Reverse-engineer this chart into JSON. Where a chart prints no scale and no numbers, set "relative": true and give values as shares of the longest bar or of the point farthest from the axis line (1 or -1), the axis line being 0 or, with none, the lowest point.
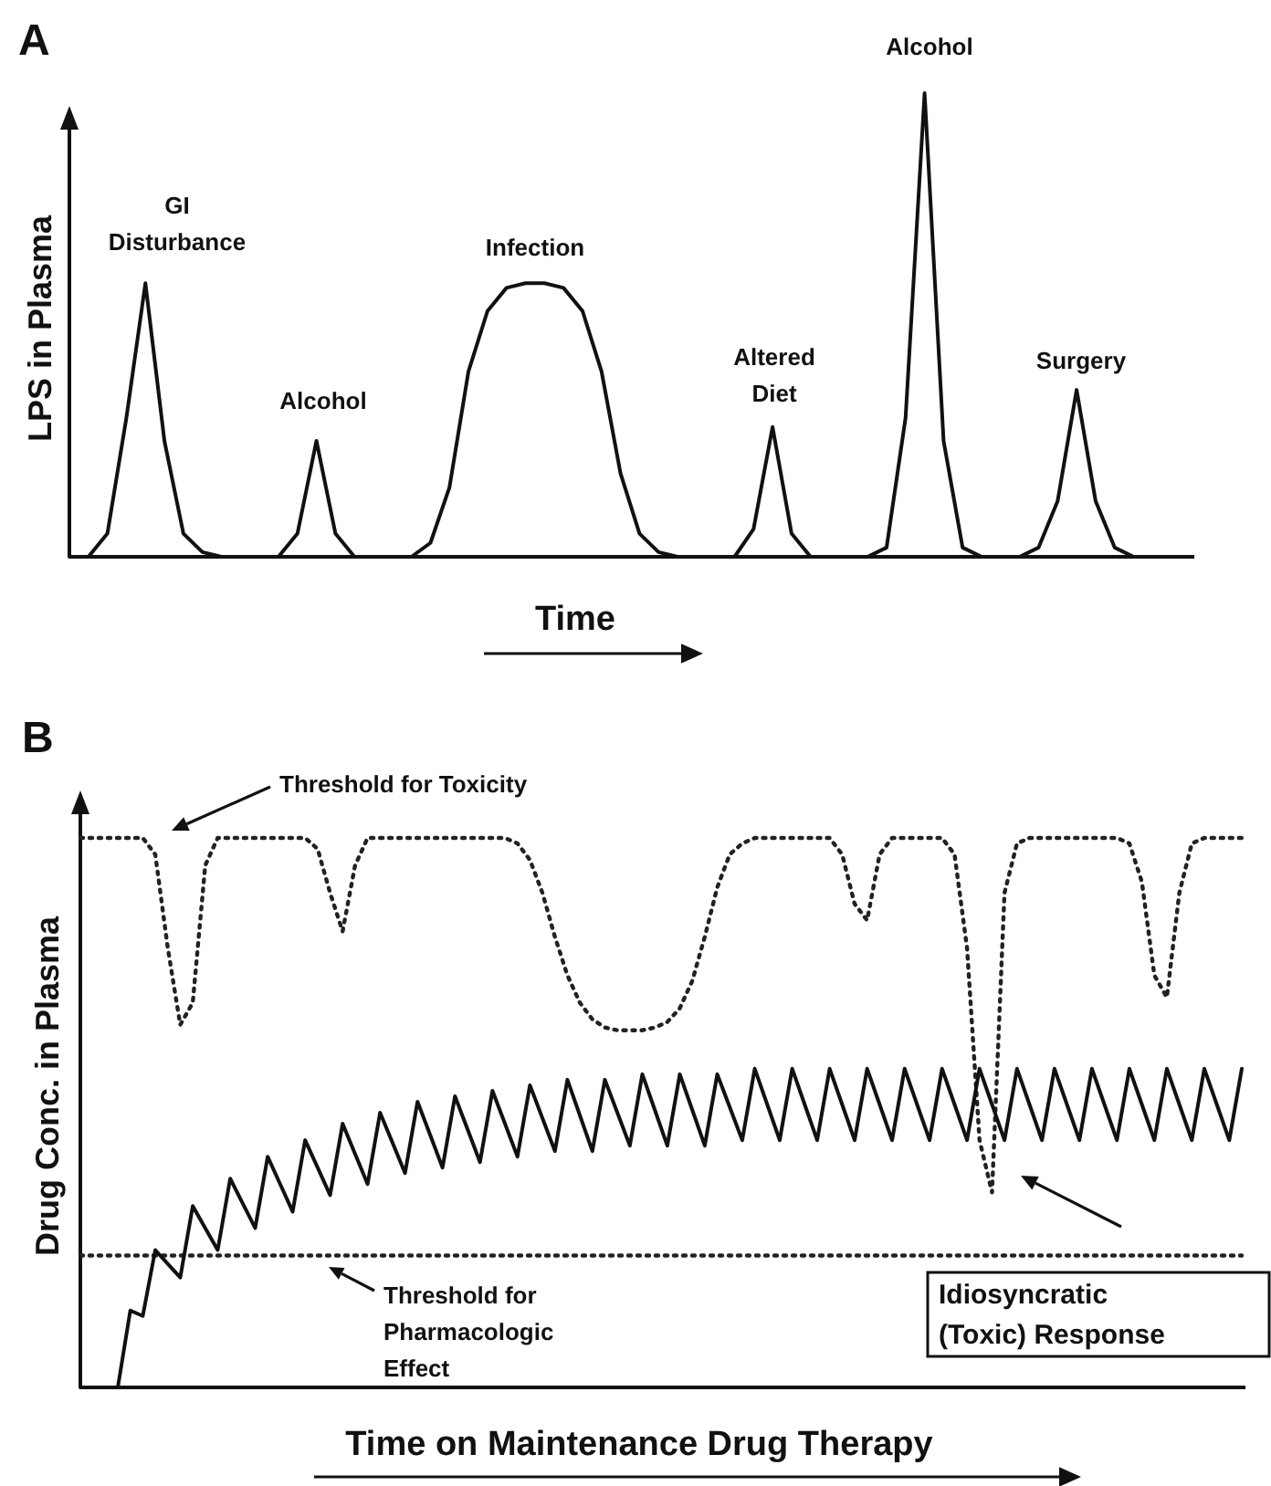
{
  "chart_data": [
    {
      "type": "line",
      "title": "A",
      "xlabel": "Time",
      "ylabel": "LPS in Plasma",
      "relative": true,
      "categories": [
        null,
        null,
        null,
        null,
        null,
        null,
        null,
        null,
        null,
        null,
        null,
        null,
        null,
        null,
        null,
        null,
        null,
        null,
        null,
        null,
        null,
        null,
        null,
        null,
        null,
        null,
        null,
        null,
        null,
        null,
        null,
        null,
        null,
        null,
        null,
        null,
        null,
        null,
        null,
        null,
        null,
        null,
        null,
        null,
        null,
        null,
        null,
        null,
        null,
        null,
        null,
        null,
        null,
        null,
        null,
        null,
        null,
        null,
        null,
        null
      ],
      "series": [
        {
          "color": "#111111",
          "line_style": "solid",
          "values": [
            0,
            0,
            0.05,
            0.3,
            0.59,
            0.25,
            0.05,
            0.01,
            0,
            0,
            0,
            0,
            0.05,
            0.25,
            0.05,
            0,
            0,
            0,
            0,
            0.03,
            0.15,
            0.4,
            0.53,
            0.58,
            0.59,
            0.59,
            0.58,
            0.53,
            0.4,
            0.18,
            0.05,
            0.01,
            0,
            0,
            0,
            0,
            0.06,
            0.28,
            0.05,
            0,
            0,
            0,
            0,
            0.02,
            0.3,
            1,
            0.25,
            0.02,
            0,
            0,
            0,
            0.02,
            0.12,
            0.36,
            0.12,
            0.02,
            0,
            0,
            0,
            0
          ]
        }
      ],
      "annotations": [
        "GI\nDisturbance",
        "Alcohol",
        "Infection",
        "Altered\nDiet",
        "Alcohol",
        "Surgery"
      ]
    },
    {
      "type": "line",
      "title": "B",
      "xlabel": "Time on Maintenance Drug Therapy",
      "ylabel": "Drug Conc. in Plasma",
      "relative": true,
      "categories": [
        null,
        null,
        null,
        null,
        null,
        null,
        null,
        null,
        null,
        null,
        null,
        null,
        null,
        null,
        null,
        null,
        null,
        null,
        null,
        null,
        null,
        null,
        null,
        null,
        null,
        null,
        null,
        null,
        null,
        null,
        null,
        null,
        null,
        null,
        null,
        null,
        null,
        null,
        null,
        null,
        null,
        null,
        null,
        null,
        null,
        null,
        null,
        null,
        null,
        null,
        null,
        null,
        null,
        null,
        null,
        null,
        null,
        null,
        null,
        null,
        null,
        null,
        null,
        null,
        null,
        null,
        null,
        null,
        null,
        null,
        null,
        null,
        null,
        null,
        null,
        null,
        null,
        null,
        null,
        null,
        null,
        null,
        null,
        null,
        null,
        null,
        null,
        null,
        null,
        null,
        null,
        null,
        null,
        null
      ],
      "series": [
        {
          "color": "#222222",
          "line_style": "dotted",
          "values": [
            1,
            1,
            1,
            1,
            1,
            1,
            0.97,
            0.8,
            0.66,
            0.7,
            0.95,
            1,
            1,
            1,
            1,
            1,
            1,
            1,
            1,
            0.98,
            0.9,
            0.83,
            0.95,
            1,
            1,
            1,
            1,
            1,
            1,
            1,
            1,
            1,
            1,
            1,
            1,
            0.99,
            0.96,
            0.9,
            0.82,
            0.75,
            0.7,
            0.67,
            0.655,
            0.65,
            0.65,
            0.65,
            0.655,
            0.665,
            0.69,
            0.74,
            0.82,
            0.91,
            0.97,
            0.99,
            1,
            1,
            1,
            1,
            1,
            1,
            1,
            0.97,
            0.88,
            0.85,
            0.97,
            1,
            1,
            1,
            1,
            1,
            0.97,
            0.8,
            0.45,
            0.355,
            0.9,
            0.99,
            1,
            1,
            1,
            1,
            1,
            1,
            1,
            1,
            0.99,
            0.92,
            0.75,
            0.71,
            0.9,
            0.99,
            1,
            1,
            1,
            1
          ]
        },
        {
          "color": "#111111",
          "line_style": "solid",
          "values": [
            0,
            0,
            0,
            0,
            0.14,
            0.13,
            0.25,
            0.225,
            0.2,
            0.33,
            0.29,
            0.25,
            0.38,
            0.335,
            0.29,
            0.42,
            0.37,
            0.32,
            0.45,
            0.4,
            0.35,
            0.48,
            0.425,
            0.37,
            0.5,
            0.445,
            0.39,
            0.52,
            0.46,
            0.4,
            0.53,
            0.47,
            0.41,
            0.54,
            0.48,
            0.42,
            0.55,
            0.49,
            0.43,
            0.56,
            0.495,
            0.43,
            0.56,
            0.5,
            0.44,
            0.57,
            0.505,
            0.44,
            0.57,
            0.505,
            0.44,
            0.57,
            0.51,
            0.45,
            0.58,
            0.515,
            0.45,
            0.58,
            0.515,
            0.45,
            0.58,
            0.515,
            0.45,
            0.58,
            0.515,
            0.45,
            0.58,
            0.515,
            0.45,
            0.58,
            0.515,
            0.45,
            0.58,
            0.515,
            0.45,
            0.58,
            0.515,
            0.45,
            0.58,
            0.515,
            0.45,
            0.58,
            0.515,
            0.45,
            0.58,
            0.515,
            0.45,
            0.58,
            0.515,
            0.45,
            0.58,
            0.515,
            0.45,
            0.58
          ]
        }
      ],
      "ref_lines": [
        {
          "axis": "y",
          "value": 0.24,
          "label": "Threshold for\nPharmacologic\nEffect",
          "line_style": "dotted",
          "color": "#222222"
        }
      ],
      "annotations": [
        "Threshold for Toxicity",
        "Idiosyncratic\n(Toxic) Response"
      ]
    }
  ]
}
